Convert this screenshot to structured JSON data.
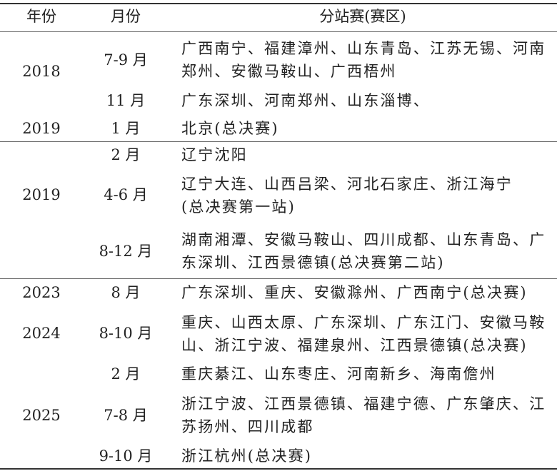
{
  "header": {
    "year": "年份",
    "month": "月份",
    "region": "分站赛(赛区)"
  },
  "rows": [
    {
      "year": "2018",
      "month": "7-9 月",
      "lines": [
        "广西南宁、福建漳州、山东青岛、江苏无锡、河南",
        "郑州、安徽马鞍山、广西梧州"
      ]
    },
    {
      "year": "",
      "month": "11 月",
      "lines": [
        "广东深圳、河南郑州、山东淄博、"
      ]
    },
    {
      "year": "2019",
      "month": "1 月",
      "lines": [
        "北京(总决赛)"
      ]
    },
    {
      "year": "",
      "month": "2 月",
      "lines": [
        "辽宁沈阳"
      ]
    },
    {
      "year": "2019",
      "month": "4-6 月",
      "lines": [
        "辽宁大连、山西吕梁、河北石家庄、浙江海宁",
        "(总决赛第一站)"
      ]
    },
    {
      "year": "",
      "month": "8-12 月",
      "lines": [
        "湖南湘潭、安徽马鞍山、四川成都、山东青岛、广",
        "东深圳、江西景德镇(总决赛第二站)"
      ]
    },
    {
      "year": "2023",
      "month": "8 月",
      "lines": [
        "广东深圳、重庆、安徽滁州、广西南宁(总决赛)"
      ]
    },
    {
      "year": "2024",
      "month": "8-10 月",
      "lines": [
        "重庆、山西太原、广东深圳、广东江门、安徽马鞍",
        "山、浙江宁波、福建泉州、江西景德镇(总决赛)"
      ]
    },
    {
      "year": "",
      "month": "2 月",
      "lines": [
        "重庆綦江、山东枣庄、河南新乡、海南儋州"
      ]
    },
    {
      "year": "2025",
      "month": "7-8 月",
      "lines": [
        "浙江宁波、江西景德镇、福建宁德、广东肇庆、江",
        "苏扬州、四川成都"
      ]
    },
    {
      "year": "",
      "month": "9-10 月",
      "lines": [
        "浙江杭州(总决赛)"
      ]
    }
  ]
}
